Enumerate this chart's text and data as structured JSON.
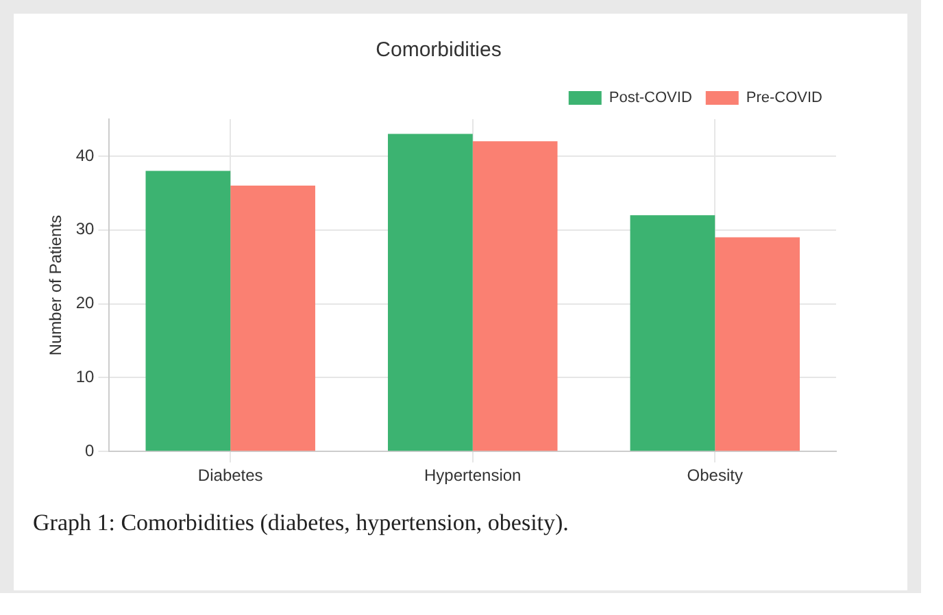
{
  "chart_data": {
    "type": "bar",
    "title": "Comorbidities",
    "ylabel": "Number of Patients",
    "categories": [
      "Diabetes",
      "Hypertension",
      "Obesity"
    ],
    "series": [
      {
        "name": "Post-COVID",
        "color": "#3cb371",
        "values": [
          38,
          43,
          32
        ]
      },
      {
        "name": "Pre-COVID",
        "color": "#fa8072",
        "values": [
          36,
          42,
          29
        ]
      }
    ],
    "ylim": [
      0,
      45
    ],
    "yticks": [
      0,
      10,
      20,
      30,
      40
    ],
    "grid": true,
    "legend": "top right",
    "annotations": [
      "Graph 1: Comorbidities (diabetes, hypertension, obesity)."
    ]
  }
}
